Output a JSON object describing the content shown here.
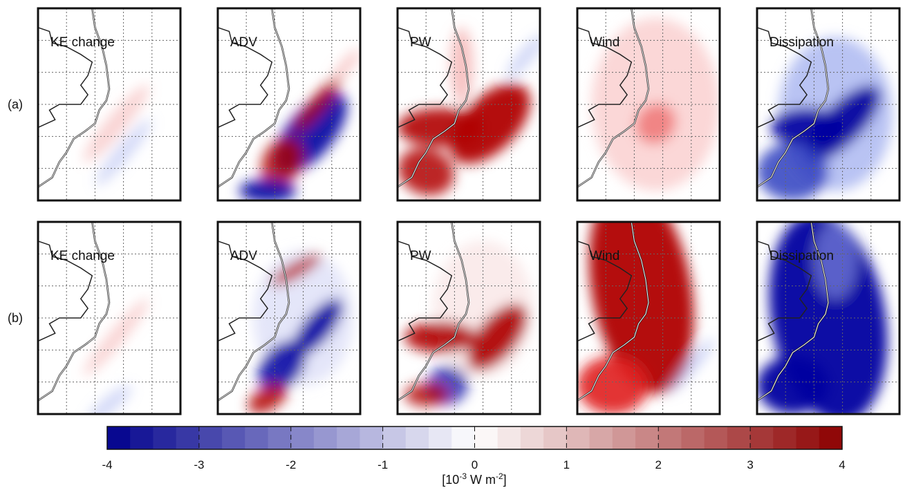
{
  "figure": {
    "rows": [
      {
        "label": "(a)",
        "panels": [
          "KE change",
          "ADV",
          "PW",
          "Wind",
          "Dissipation"
        ]
      },
      {
        "label": "(b)",
        "panels": [
          "KE change",
          "ADV",
          "PW",
          "Wind",
          "Dissipation"
        ]
      }
    ],
    "colorbar": {
      "lim": [
        -4,
        4
      ],
      "ticks": [
        -4,
        -3,
        -2,
        -1,
        0,
        1,
        2,
        3,
        4
      ],
      "label_parts": [
        "[10",
        "-3",
        " W m",
        "-2",
        "]"
      ]
    }
  }
}
